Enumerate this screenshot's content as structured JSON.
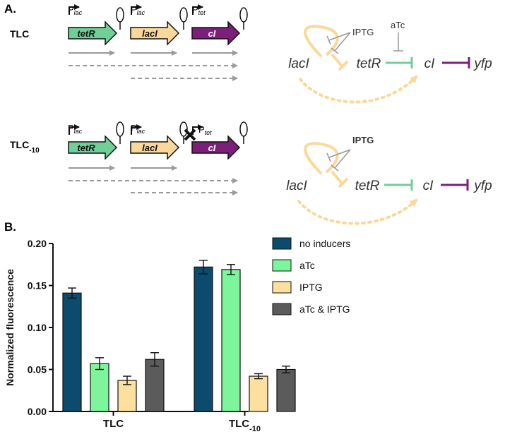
{
  "panels": {
    "a": "A.",
    "b": "B."
  },
  "constructs": [
    {
      "label_main": "TLC",
      "label_sub": "",
      "genes": [
        {
          "name": "tetR",
          "promoter": "P",
          "promoter_sub": "lac",
          "color": "#6fcf97"
        },
        {
          "name": "lacI",
          "promoter": "P",
          "promoter_sub": "lac",
          "color": "#fbd89a"
        },
        {
          "name": "cI",
          "promoter": "P",
          "promoter_sub": "tet",
          "color": "#7b1f7a"
        }
      ],
      "circuit": {
        "n1": "lacI",
        "n2": "tetR",
        "n3": "cI",
        "n4": "yfp",
        "inducer_iptg": "IPTG",
        "inducer_atc": "aTc"
      }
    },
    {
      "label_main": "TLC",
      "label_sub": "-10",
      "genes": [
        {
          "name": "tetR",
          "promoter": "P",
          "promoter_sub": "lac",
          "color": "#6fcf97"
        },
        {
          "name": "lacI",
          "promoter": "P",
          "promoter_sub": "lac",
          "color": "#fbd89a"
        },
        {
          "name": "cI",
          "promoter": "P",
          "promoter_sub": "tet",
          "color": "#7b1f7a"
        }
      ],
      "circuit": {
        "n1": "lacI",
        "n2": "tetR",
        "n3": "cI",
        "n4": "yfp",
        "inducer_iptg": "IPTG",
        "inducer_atc": ""
      }
    }
  ],
  "chart_data": {
    "type": "bar",
    "ylabel": "Normalized fluorescence",
    "ylim": [
      0,
      0.2
    ],
    "yticks": [
      "0.00",
      "0.05",
      "0.10",
      "0.15",
      "0.20"
    ],
    "categories": [
      {
        "main": "TLC",
        "sub": ""
      },
      {
        "main": "TLC",
        "sub": "-10"
      }
    ],
    "series": [
      {
        "name": "no inducers",
        "color": "#0c4a6e",
        "values": [
          0.141,
          0.172
        ],
        "errors": [
          0.006,
          0.008
        ]
      },
      {
        "name": "aTc",
        "color": "#7df59a",
        "values": [
          0.057,
          0.169
        ],
        "errors": [
          0.007,
          0.006
        ]
      },
      {
        "name": "IPTG",
        "color": "#fddf9f",
        "values": [
          0.037,
          0.042
        ],
        "errors": [
          0.005,
          0.003
        ]
      },
      {
        "name": "aTc & IPTG",
        "color": "#5b5b5b",
        "values": [
          0.062,
          0.05
        ],
        "errors": [
          0.008,
          0.004
        ]
      }
    ]
  }
}
